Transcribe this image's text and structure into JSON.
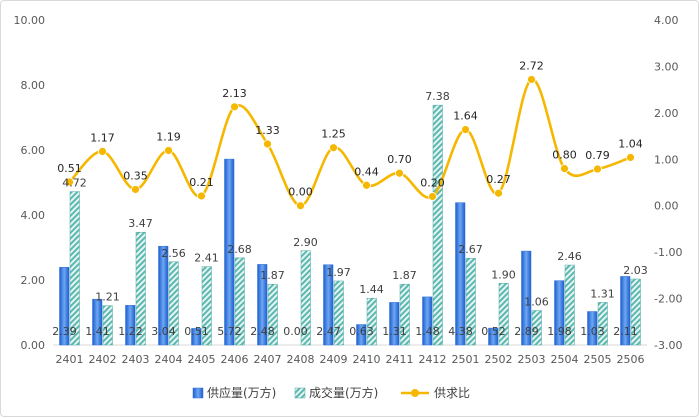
{
  "chart_data": {
    "type": "bar+line",
    "categories": [
      "2401",
      "2402",
      "2403",
      "2404",
      "2405",
      "2406",
      "2407",
      "2408",
      "2409",
      "2410",
      "2411",
      "2412",
      "2501",
      "2502",
      "2503",
      "2504",
      "2505",
      "2506"
    ],
    "series": [
      {
        "name": "供应量(万方)",
        "type": "bar",
        "axis": "left",
        "color": "#4a86e8",
        "values": [
          2.39,
          1.41,
          1.22,
          3.04,
          0.51,
          5.72,
          2.48,
          0.0,
          2.47,
          0.63,
          1.31,
          1.48,
          4.38,
          0.52,
          2.89,
          1.98,
          1.03,
          2.11
        ],
        "labels": [
          "2.39",
          "1.41",
          "1.22",
          "3.04",
          "0.51",
          "5.72",
          "2.48",
          "0.00",
          "2.47",
          "0.63",
          "1.31",
          "1.48",
          "4.38",
          "0.52",
          "2.89",
          "1.98",
          "1.03",
          "2.11"
        ]
      },
      {
        "name": "成交量(万方)",
        "type": "bar",
        "axis": "left",
        "color": "#5bb8b0",
        "values": [
          4.72,
          1.21,
          3.47,
          2.56,
          2.41,
          2.68,
          1.87,
          2.9,
          1.97,
          1.44,
          1.87,
          7.38,
          2.67,
          1.9,
          1.06,
          2.46,
          1.31,
          2.03
        ],
        "labels": [
          "4.72",
          "1.21",
          "3.47",
          "2.56",
          "2.41",
          "2.68",
          "1.87",
          "2.90",
          "1.97",
          "1.44",
          "1.87",
          "7.38",
          "2.67",
          "1.90",
          "1.06",
          "2.46",
          "1.31",
          "2.03"
        ]
      },
      {
        "name": "供求比",
        "type": "line",
        "axis": "right",
        "color": "#f5b700",
        "values": [
          0.51,
          1.17,
          0.35,
          1.19,
          0.21,
          2.13,
          1.33,
          0.0,
          1.25,
          0.44,
          0.7,
          0.2,
          1.64,
          0.27,
          2.72,
          0.8,
          0.79,
          1.04
        ],
        "labels": [
          "0.51",
          "1.17",
          "0.35",
          "1.19",
          "0.21",
          "2.13",
          "1.33",
          "0.00",
          "1.25",
          "0.44",
          "0.70",
          "0.20",
          "1.64",
          "0.27",
          "2.72",
          "0.80",
          "0.79",
          "1.04"
        ]
      }
    ],
    "left_axis": {
      "ylim": [
        0,
        10
      ],
      "ticks": [
        "0.00",
        "2.00",
        "4.00",
        "6.00",
        "8.00",
        "10.00"
      ]
    },
    "right_axis": {
      "ylim": [
        -3,
        4
      ],
      "ticks": [
        "-3.00",
        "-2.00",
        "-1.00",
        "0.00",
        "1.00",
        "2.00",
        "3.00",
        "4.00"
      ]
    },
    "grid": false,
    "legend": "bottom"
  }
}
